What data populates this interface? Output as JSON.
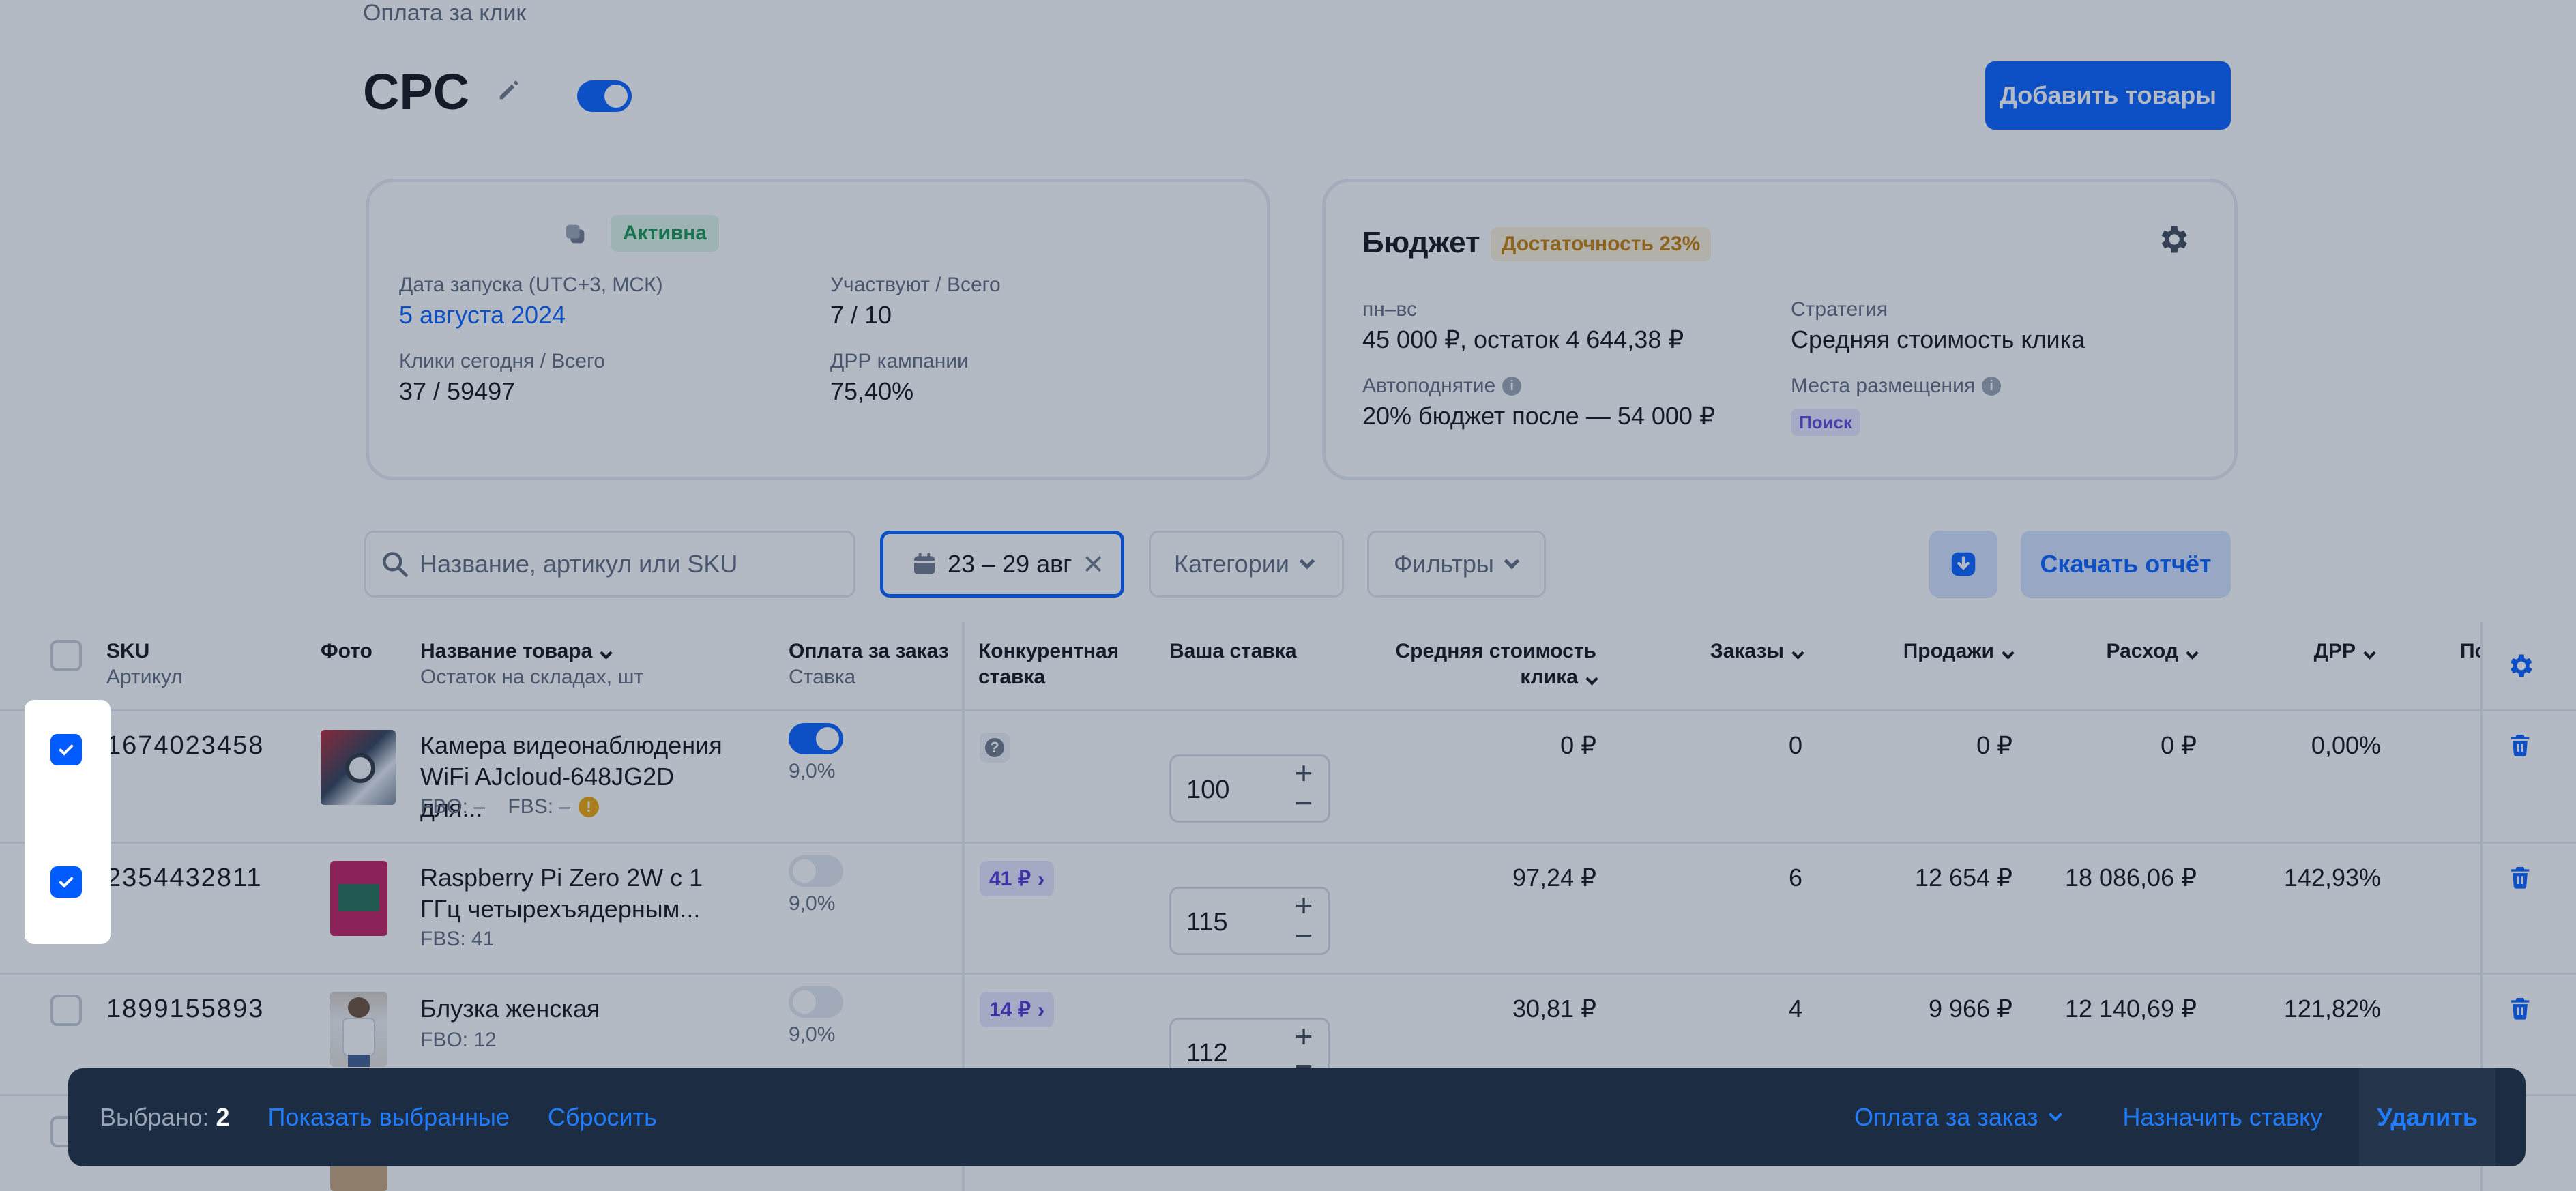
{
  "header": {
    "breadcrumb": "Оплата за клик",
    "title": "CPC",
    "add_button": "Добавить товары",
    "campaign_enabled": true
  },
  "status_card": {
    "badge": "Активна",
    "launch_label": "Дата запуска (UTC+3, МСК)",
    "launch_value": "5 августа 2024",
    "participants_label": "Участвуют / Всего",
    "participants_value": "7 / 10",
    "clicks_label": "Клики сегодня / Всего",
    "clicks_value": "37 / 59497",
    "drr_label": "ДРР кампании",
    "drr_value": "75,40%"
  },
  "budget_card": {
    "title": "Бюджет",
    "badge": "Достаточность 23%",
    "period_label": "пн–вс",
    "period_value": "45 000 ₽, остаток 4 644,38 ₽",
    "strategy_label": "Стратегия",
    "strategy_value": "Средняя стоимость клика",
    "autoraise_label": "Автоподнятие",
    "autoraise_value": "20% бюджет после — 54 000 ₽",
    "placements_label": "Места размещения",
    "placement_tag": "Поиск"
  },
  "toolbar": {
    "search_placeholder": "Название, артикул или SKU",
    "date_range": "23 – 29 авг",
    "categories": "Категории",
    "filters": "Фильтры",
    "download_report": "Скачать отчёт"
  },
  "table": {
    "headers": {
      "sku": "SKU",
      "article": "Артикул",
      "photo": "Фото",
      "name": "Название товара",
      "stock": "Остаток на складах, шт",
      "pay_per_order": "Оплата за заказ",
      "rate": "Ставка",
      "competitive": "Конкурентная ставка",
      "your_bid": "Ваша ставка",
      "avg_click": "Средняя стоимость клика",
      "orders": "Заказы",
      "sales": "Продажи",
      "spend": "Расход",
      "drr": "ДРР",
      "cut": "По"
    },
    "rows": [
      {
        "sku": "1674023458",
        "name": "Камера видеонаблюдения WiFi AJcloud-648JG2D для...",
        "stock": "FBO: –    FBS: –",
        "pay_enabled": true,
        "rate": "9,0%",
        "competitive": "",
        "bid": "100",
        "avg_click": "0 ₽",
        "orders": "0",
        "sales": "0 ₽",
        "spend": "0 ₽",
        "drr": "0,00%",
        "checked": true
      },
      {
        "sku": "2354432811",
        "name": "Raspberry Pi Zero 2W с 1 ГГц четырехъядерным...",
        "stock": "FBS: 41",
        "pay_enabled": false,
        "rate": "9,0%",
        "competitive": "41 ₽",
        "bid": "115",
        "avg_click": "97,24 ₽",
        "orders": "6",
        "sales": "12 654 ₽",
        "spend": "18 086,06 ₽",
        "drr": "142,93%",
        "checked": true
      },
      {
        "sku": "1899155893",
        "name": "Блузка женская",
        "stock": "FBO: 12",
        "pay_enabled": false,
        "rate": "9,0%",
        "competitive": "14 ₽",
        "bid": "112",
        "avg_click": "30,81 ₽",
        "orders": "4",
        "sales": "9 966 ₽",
        "spend": "12 140,69 ₽",
        "drr": "121,82%",
        "checked": false
      }
    ]
  },
  "selection_bar": {
    "selected_label": "Выбрано:",
    "selected_count": "2",
    "show_selected": "Показать выбранные",
    "reset": "Сбросить",
    "pay_per_order": "Оплата за заказ",
    "assign_bid": "Назначить ставку",
    "delete": "Удалить"
  },
  "colors": {
    "accent": "#005bff",
    "success_bg": "#dff6e6",
    "warning_bg": "#fdf0d9",
    "bar_bg": "#1c2c42"
  }
}
